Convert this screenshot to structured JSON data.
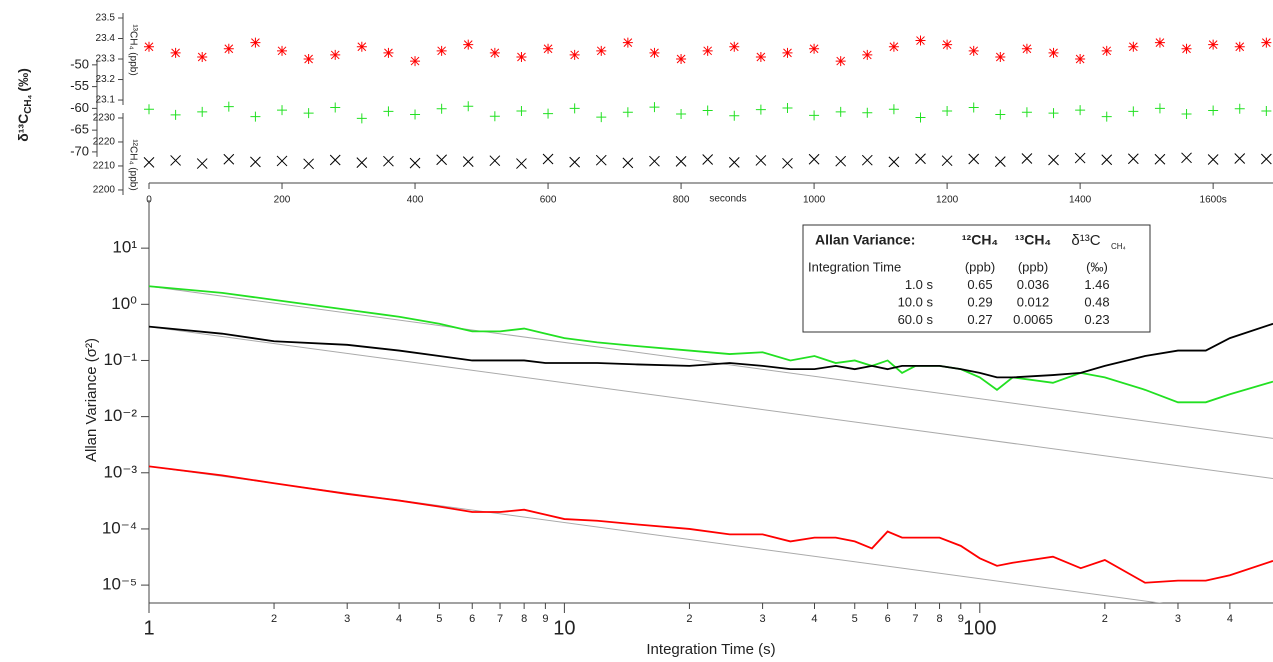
{
  "chart_data": [
    {
      "type": "scatter",
      "x_label": "seconds",
      "x": [
        0,
        40,
        80,
        120,
        160,
        200,
        240,
        280,
        320,
        360,
        400,
        440,
        480,
        520,
        560,
        600,
        640,
        680,
        720,
        760,
        800,
        840,
        880,
        920,
        960,
        1000,
        1040,
        1080,
        1120,
        1160,
        1200,
        1240,
        1280,
        1320,
        1360,
        1400,
        1440,
        1480,
        1520,
        1560,
        1600,
        1640,
        1680
      ],
      "xlim": [
        0,
        1690
      ],
      "xticks": [
        0,
        200,
        400,
        600,
        800,
        1000,
        1200,
        1400,
        {
          "value": 1600,
          "label": "1600s"
        }
      ],
      "ylabel": "δ¹³C",
      "ylabel_sub": "CH₄",
      "ylabel_unit": "(‰)",
      "ylim": [
        -79.9,
        -37.4
      ],
      "yticks": [
        -50,
        -55,
        -60,
        -65,
        -70
      ],
      "y2label": "¹³CH₄ (ppb)",
      "y2lim": [
        22.637,
        23.539
      ],
      "y2ticks": [
        23.1,
        23.2,
        23.3,
        23.4,
        23.5
      ],
      "y3label": "¹²CH₄ (ppb)",
      "y3lim": [
        2197.9,
        2275
      ],
      "y3ticks": [
        2200,
        2210,
        2220,
        2230
      ],
      "series": [
        {
          "color": "#ff0000",
          "marker": "star",
          "axis": "y2",
          "values": [
            23.36,
            23.33,
            23.31,
            23.35,
            23.38,
            23.34,
            23.3,
            23.32,
            23.36,
            23.33,
            23.29,
            23.34,
            23.37,
            23.33,
            23.31,
            23.35,
            23.32,
            23.34,
            23.38,
            23.33,
            23.3,
            23.34,
            23.36,
            23.31,
            23.33,
            23.35,
            23.29,
            23.32,
            23.36,
            23.39,
            23.37,
            23.34,
            23.31,
            23.35,
            23.33,
            23.3,
            23.34,
            23.36,
            23.38,
            23.35,
            23.37,
            23.36,
            23.38
          ]
        },
        {
          "color": "#22e022",
          "marker": "plus",
          "axis": "y",
          "values": [
            -60.2,
            -61.5,
            -60.8,
            -59.6,
            -61.9,
            -60.4,
            -61.1,
            -59.8,
            -62.3,
            -60.7,
            -61.4,
            -60.1,
            -59.5,
            -61.8,
            -60.6,
            -61.2,
            -60.0,
            -62.0,
            -60.9,
            -59.7,
            -61.3,
            -60.5,
            -61.7,
            -60.3,
            -59.9,
            -61.6,
            -60.8,
            -61.0,
            -60.2,
            -62.1,
            -60.6,
            -59.8,
            -61.4,
            -60.9,
            -61.1,
            -60.4,
            -61.9,
            -60.7,
            -60.0,
            -61.3,
            -60.5,
            -60.1,
            -60.6
          ]
        },
        {
          "color": "#000000",
          "marker": "cross",
          "axis": "y3",
          "values": [
            2211.5,
            2212.3,
            2211.0,
            2212.8,
            2211.7,
            2212.1,
            2210.9,
            2212.5,
            2211.4,
            2212.0,
            2211.2,
            2212.6,
            2211.8,
            2212.2,
            2211.0,
            2212.9,
            2211.6,
            2212.4,
            2211.3,
            2212.0,
            2211.9,
            2212.7,
            2211.5,
            2212.3,
            2211.1,
            2212.8,
            2212.0,
            2212.4,
            2211.7,
            2213.0,
            2212.2,
            2212.9,
            2211.8,
            2213.1,
            2212.5,
            2213.3,
            2212.6,
            2213.0,
            2212.8,
            2213.4,
            2212.7,
            2213.1,
            2212.9
          ]
        }
      ]
    },
    {
      "type": "line",
      "log_x": true,
      "log_y": true,
      "xlabel": "Integration Time (s)",
      "ylabel": "Allan Variance (σ²)",
      "xlim": [
        1,
        508
      ],
      "ylim": [
        4.8e-06,
        72
      ],
      "xticks": [
        1,
        2,
        3,
        4,
        5,
        6,
        7,
        8,
        9,
        10,
        {
          "value": 20,
          "label": "2"
        },
        {
          "value": 30,
          "label": "3"
        },
        {
          "value": 40,
          "label": "4"
        },
        {
          "value": 50,
          "label": "5"
        },
        {
          "value": 60,
          "label": "6"
        },
        {
          "value": 70,
          "label": "7"
        },
        {
          "value": 80,
          "label": "8"
        },
        {
          "value": 90,
          "label": "9"
        },
        100,
        {
          "value": 200,
          "label": "2"
        },
        {
          "value": 300,
          "label": "3"
        },
        {
          "value": 400,
          "label": "4"
        }
      ],
      "yticks": [
        {
          "value": 10,
          "label": "10¹"
        },
        {
          "value": 1,
          "label": "10⁰"
        },
        {
          "value": 0.1,
          "label": "10⁻¹"
        },
        {
          "value": 0.01,
          "label": "10⁻²"
        },
        {
          "value": 0.001,
          "label": "10⁻³"
        },
        {
          "value": 0.0001,
          "label": "10⁻⁴"
        },
        {
          "value": 1e-05,
          "label": "10⁻⁵"
        }
      ],
      "series": [
        {
          "color": "#aaaaaa",
          "x": [
            1,
            508
          ],
          "values": [
            2.1,
            0.0041
          ]
        },
        {
          "color": "#aaaaaa",
          "x": [
            1,
            508
          ],
          "values": [
            0.4,
            0.00079
          ]
        },
        {
          "color": "#aaaaaa",
          "x": [
            1,
            508
          ],
          "values": [
            0.0013,
            2.56e-06
          ]
        },
        {
          "color": "#22e022",
          "x": [
            1,
            1.5,
            2,
            3,
            4,
            5,
            6,
            7,
            8,
            9,
            10,
            12,
            15,
            20,
            25,
            30,
            35,
            40,
            45,
            50,
            55,
            60,
            65,
            70,
            80,
            90,
            100,
            110,
            120,
            150,
            175,
            200,
            250,
            300,
            350,
            400,
            508
          ],
          "values": [
            2.1,
            1.6,
            1.2,
            0.8,
            0.6,
            0.45,
            0.33,
            0.33,
            0.37,
            0.3,
            0.25,
            0.21,
            0.18,
            0.15,
            0.13,
            0.14,
            0.1,
            0.12,
            0.09,
            0.1,
            0.08,
            0.1,
            0.06,
            0.08,
            0.08,
            0.07,
            0.05,
            0.03,
            0.05,
            0.04,
            0.06,
            0.05,
            0.03,
            0.018,
            0.018,
            0.025,
            0.042
          ]
        },
        {
          "color": "#000000",
          "x": [
            1,
            1.5,
            2,
            3,
            4,
            5,
            6,
            7,
            8,
            9,
            10,
            12,
            15,
            20,
            25,
            30,
            35,
            40,
            45,
            50,
            55,
            60,
            65,
            70,
            80,
            90,
            100,
            110,
            120,
            150,
            175,
            200,
            250,
            300,
            350,
            400,
            508
          ],
          "values": [
            0.4,
            0.3,
            0.22,
            0.19,
            0.15,
            0.12,
            0.1,
            0.1,
            0.1,
            0.09,
            0.09,
            0.09,
            0.085,
            0.08,
            0.09,
            0.08,
            0.07,
            0.07,
            0.08,
            0.07,
            0.08,
            0.07,
            0.08,
            0.08,
            0.08,
            0.07,
            0.06,
            0.05,
            0.05,
            0.055,
            0.06,
            0.08,
            0.12,
            0.15,
            0.15,
            0.25,
            0.45
          ]
        },
        {
          "color": "#ff0000",
          "x": [
            1,
            1.5,
            2,
            3,
            4,
            5,
            6,
            7,
            8,
            9,
            10,
            12,
            15,
            20,
            25,
            30,
            35,
            40,
            45,
            50,
            55,
            60,
            65,
            70,
            80,
            90,
            100,
            110,
            120,
            150,
            175,
            200,
            250,
            300,
            350,
            400,
            508
          ],
          "values": [
            0.0013,
            0.0009,
            0.00065,
            0.00042,
            0.00032,
            0.00025,
            0.0002,
            0.0002,
            0.00022,
            0.00018,
            0.00015,
            0.00014,
            0.00012,
            0.0001,
            8e-05,
            8e-05,
            6e-05,
            7e-05,
            7e-05,
            6e-05,
            4.5e-05,
            9e-05,
            7e-05,
            7e-05,
            7e-05,
            5e-05,
            3e-05,
            2.2e-05,
            2.5e-05,
            3.2e-05,
            2e-05,
            2.8e-05,
            1.1e-05,
            1.2e-05,
            1.2e-05,
            1.5e-05,
            2.7e-05
          ]
        }
      ],
      "table": {
        "title": "Allan Variance:",
        "columns": [
          "¹²CH₄",
          "¹³CH₄",
          "δ¹³C"
        ],
        "column_sub": "CH₄",
        "rows": [
          [
            "Integration Time",
            "(ppb)",
            "(ppb)",
            "(‰)"
          ],
          [
            "1.0 s",
            "0.65",
            "0.036",
            "1.46"
          ],
          [
            "10.0 s",
            "0.29",
            "0.012",
            "0.48"
          ],
          [
            "60.0 s",
            "0.27",
            "0.0065",
            "0.23"
          ]
        ]
      }
    }
  ]
}
